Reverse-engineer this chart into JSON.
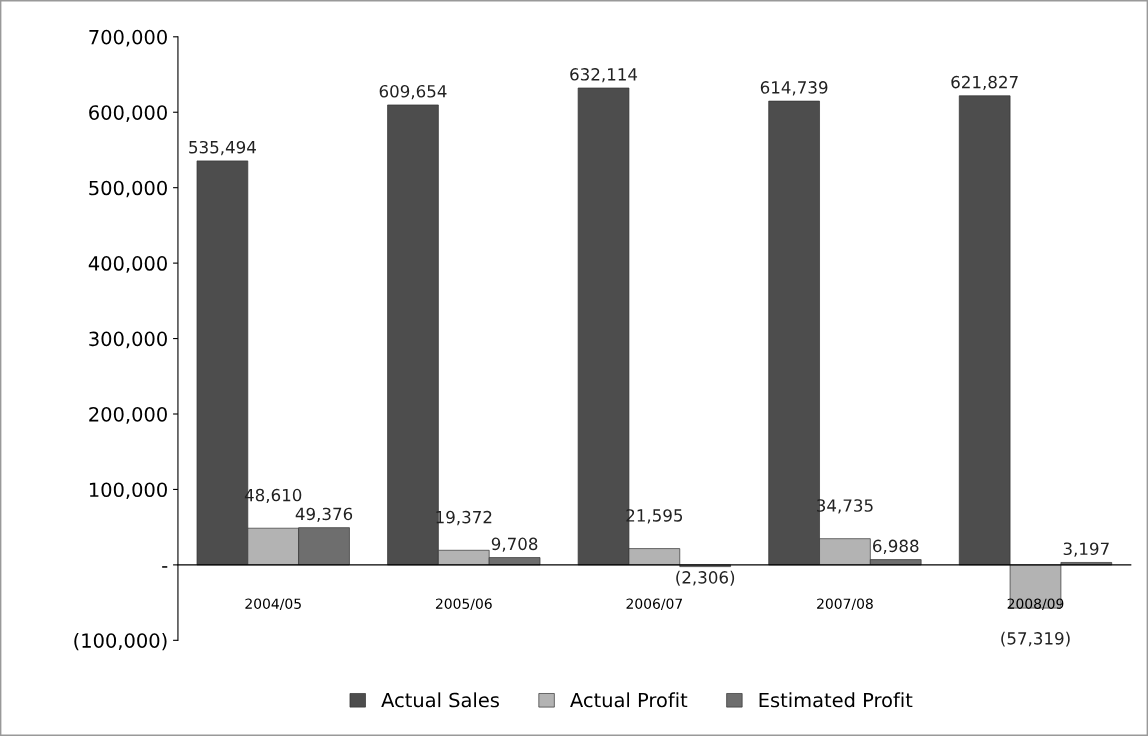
{
  "chart_data": {
    "type": "bar",
    "categories": [
      "2004/05",
      "2005/06",
      "2006/07",
      "2007/08",
      "2008/09"
    ],
    "series": [
      {
        "name": "Actual Sales",
        "color": "#4d4d4d",
        "values": [
          535494,
          609654,
          632114,
          614739,
          621827
        ],
        "value_labels": [
          "535,494",
          "609,654",
          "632,114",
          "614,739",
          "621,827"
        ]
      },
      {
        "name": "Actual Profit",
        "color": "#b3b3b3",
        "values": [
          48610,
          19372,
          21595,
          34735,
          -57319
        ],
        "value_labels": [
          "48,610",
          "19,372",
          "21,595",
          "34,735",
          "(57,319)"
        ]
      },
      {
        "name": "Estimated Profit",
        "color": "#6e6e6e",
        "values": [
          49376,
          9708,
          -2306,
          6988,
          3197
        ],
        "value_labels": [
          "49,376",
          "9,708",
          "(2,306)",
          "6,988",
          "3,197"
        ]
      }
    ],
    "ylim": [
      -100000,
      700000
    ],
    "yticks": [
      {
        "value": -100000,
        "label": "(100,000)"
      },
      {
        "value": 0,
        "label": "-"
      },
      {
        "value": 100000,
        "label": "100,000"
      },
      {
        "value": 200000,
        "label": "200,000"
      },
      {
        "value": 300000,
        "label": "300,000"
      },
      {
        "value": 400000,
        "label": "400,000"
      },
      {
        "value": 500000,
        "label": "500,000"
      },
      {
        "value": 600000,
        "label": "600,000"
      },
      {
        "value": 700000,
        "label": "700,000"
      }
    ],
    "grid": false,
    "legend": "bottom"
  }
}
